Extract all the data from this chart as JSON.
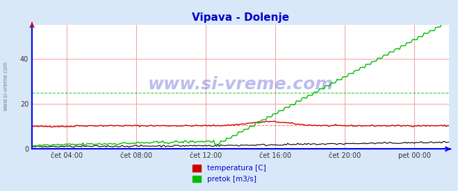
{
  "title": "Vipava - Dolenje",
  "title_color": "#0000cc",
  "bg_color": "#d8e8f8",
  "plot_bg_color": "#ffffff",
  "x_labels": [
    "čet 04:00",
    "čet 08:00",
    "čet 12:00",
    "čet 16:00",
    "čet 20:00",
    "pet 00:00"
  ],
  "x_ticks_norm": [
    0.083,
    0.25,
    0.417,
    0.583,
    0.75,
    0.917
  ],
  "ylim": [
    0,
    55
  ],
  "yticks": [
    0,
    20,
    40
  ],
  "grid_color": "#f0a0a0",
  "axis_color": "#0000ff",
  "watermark_text": "www.si-vreme.com",
  "watermark_color": "#4444cc",
  "watermark_alpha": 0.35,
  "legend_labels": [
    "temperatura [C]",
    "pretok [m3/s]"
  ],
  "legend_colors": [
    "#cc0000",
    "#00bb00"
  ],
  "temp_color": "#cc0000",
  "flow_color": "#00bb00",
  "height_color": "#000000",
  "avg_temp_line": 10.5,
  "avg_flow_line": 25.0,
  "avg_temp_color": "#ff6666",
  "avg_flow_color": "#00cc00",
  "n_points": 288
}
